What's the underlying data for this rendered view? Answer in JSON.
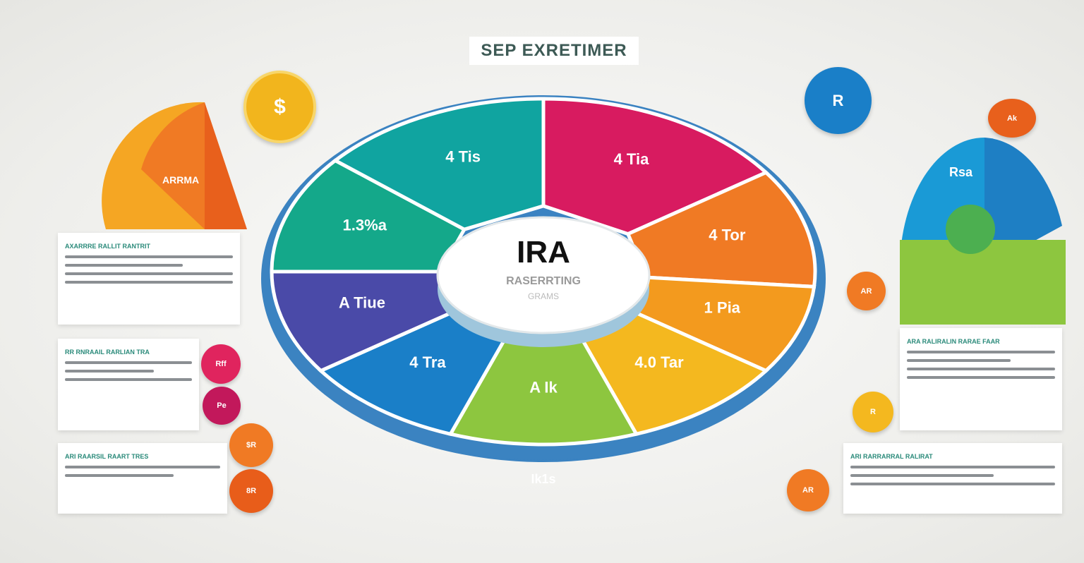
{
  "header": {
    "title": "SEP EXRETIMER"
  },
  "center": {
    "title": "IRA",
    "subtitle": "RASERRTING",
    "caption": "GRAMS"
  },
  "wheel": {
    "segments": [
      {
        "label": "4 Tia",
        "color": "#d81b60",
        "start": 0,
        "end": 55
      },
      {
        "label": "4 Tor",
        "color": "#f07a24",
        "start": 55,
        "end": 95
      },
      {
        "label": "1 Pia",
        "color": "#f39a1e",
        "start": 95,
        "end": 125
      },
      {
        "label": "4.0 Tar",
        "color": "#f4b81f",
        "start": 125,
        "end": 160
      },
      {
        "label": "A Ik",
        "color": "#8dc63f",
        "start": 160,
        "end": 200
      },
      {
        "label": "4 Tra",
        "color": "#1a7fc8",
        "start": 200,
        "end": 235
      },
      {
        "label": "A Tiue",
        "color": "#4a4aa8",
        "start": 235,
        "end": 270
      },
      {
        "label": "1.3%a",
        "color": "#14a88a",
        "start": 270,
        "end": 310
      },
      {
        "label": "4 Tis",
        "color": "#10a4a0",
        "start": 310,
        "end": 360
      }
    ],
    "bottom_label": "Ik1s"
  },
  "left": {
    "cards": [
      {
        "heading": "AXARRRE RALLIT RANTRIT",
        "lines": 3
      },
      {
        "heading": "RR RNRAAIL RARLIAN TRA",
        "lines": 3
      },
      {
        "heading": "ARI RAARSIL RAART TRES",
        "lines": 2
      }
    ],
    "badges": [
      {
        "label": "Rff",
        "color": "#e0245e"
      },
      {
        "label": "Pe",
        "color": "#c2185b"
      },
      {
        "label": "$R",
        "color": "#f07a24"
      },
      {
        "label": "8R",
        "color": "#e85d1a"
      }
    ],
    "coin": {
      "label": "$",
      "color": "#f2b51d"
    },
    "quarter_label": "ARRMA"
  },
  "right": {
    "cards": [
      {
        "heading": "ARA RALIRALIN RARAE FAAR",
        "lines": 3
      },
      {
        "heading": "ARI RARRARRAL RALIRAT",
        "lines": 2
      }
    ],
    "badges": [
      {
        "label": "Ak",
        "color": "#f07a24"
      },
      {
        "label": "AR",
        "color": "#e8501a"
      },
      {
        "label": "R",
        "color": "#f4b81f"
      },
      {
        "label": "AR",
        "color": "#f07a24"
      }
    ],
    "blue_circle": {
      "label": "R",
      "color": "#1a7fc8"
    },
    "semi_label": "Rsa"
  }
}
